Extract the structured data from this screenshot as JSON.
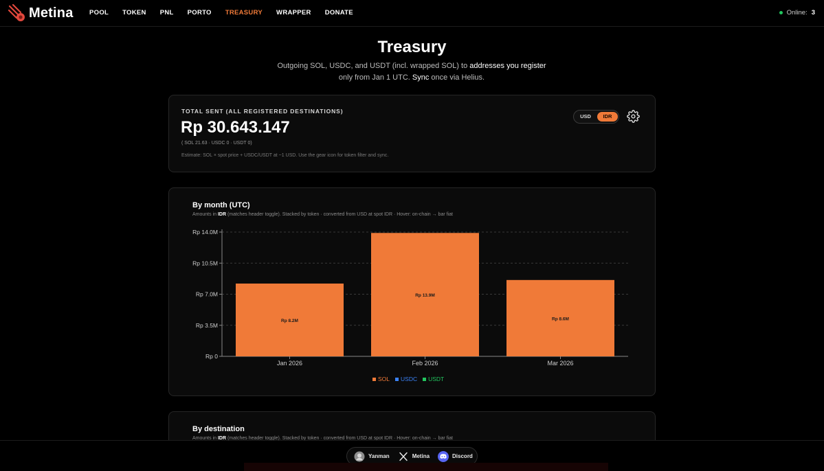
{
  "app": {
    "name": "Metina"
  },
  "nav": {
    "items": [
      {
        "label": "POOL",
        "active": false
      },
      {
        "label": "TOKEN",
        "active": false
      },
      {
        "label": "PNL",
        "active": false
      },
      {
        "label": "PORTO",
        "active": false
      },
      {
        "label": "TREASURY",
        "active": true
      },
      {
        "label": "WRAPPER",
        "active": false
      },
      {
        "label": "DONATE",
        "active": false
      }
    ],
    "online_label": "Online:",
    "online_count": "3"
  },
  "header": {
    "title": "Treasury",
    "subtitle_part1": "Outgoing SOL, USDC, and USDT (incl. wrapped SOL) to ",
    "subtitle_strong1": "addresses you register",
    "subtitle_part2": " only from Jan 1 UTC. ",
    "subtitle_strong2": "Sync",
    "subtitle_part3": " once via Helius."
  },
  "summary": {
    "label": "TOTAL SENT (ALL REGISTERED DESTINATIONS)",
    "amount": "Rp 30.643.147",
    "breakdown": "( SOL 21.63 · USDC 0 · USDT 0)",
    "estimate": "Estimate: SOL × spot price + USDC/USDT at ~1 USD. Use the gear icon for token filter and sync.",
    "currency_options": [
      "USD",
      "IDR"
    ],
    "currency_selected": "IDR",
    "settings_icon": "gear-icon"
  },
  "month_card": {
    "title": "By month (UTC)",
    "desc_prefix": "Amounts in ",
    "desc_currency": "IDR",
    "desc_suffix": " (matches header toggle). Stacked by token · converted from USD at spot IDR · Hover: on-chain → bar fiat"
  },
  "chart_data": {
    "type": "bar",
    "stacked": true,
    "categories": [
      "Jan 2026",
      "Feb 2026",
      "Mar 2026"
    ],
    "series": [
      {
        "name": "SOL",
        "color": "#f07a38",
        "values": [
          8.2,
          13.9,
          8.6
        ]
      },
      {
        "name": "USDC",
        "color": "#3b82f6",
        "values": [
          0,
          0,
          0
        ]
      },
      {
        "name": "USDT",
        "color": "#22c55e",
        "values": [
          0,
          0,
          0
        ]
      }
    ],
    "data_labels": [
      "Rp 8.2M",
      "Rp 13.9M",
      "Rp 8.6M"
    ],
    "yticks": [
      0,
      3.5,
      7.0,
      10.5,
      14.0
    ],
    "ytick_labels": [
      "Rp 0",
      "Rp 3.5M",
      "Rp 7.0M",
      "Rp 10.5M",
      "Rp 14.0M"
    ],
    "ylim": [
      0,
      14.0
    ],
    "grid": true,
    "legend_position": "bottom-center",
    "xlabel": "",
    "ylabel": ""
  },
  "dest_card": {
    "title": "By destination",
    "desc_prefix": "Amounts in ",
    "desc_currency": "IDR",
    "desc_suffix": " (matches header toggle). Stacked by token · converted from USD at spot IDR · Hover: on-chain → bar fiat"
  },
  "footer": {
    "links": [
      {
        "label": "Yanman",
        "icon": "avatar-icon"
      },
      {
        "label": "Metina",
        "icon": "x-logo-icon"
      },
      {
        "label": "Discord",
        "icon": "discord-icon"
      }
    ]
  }
}
